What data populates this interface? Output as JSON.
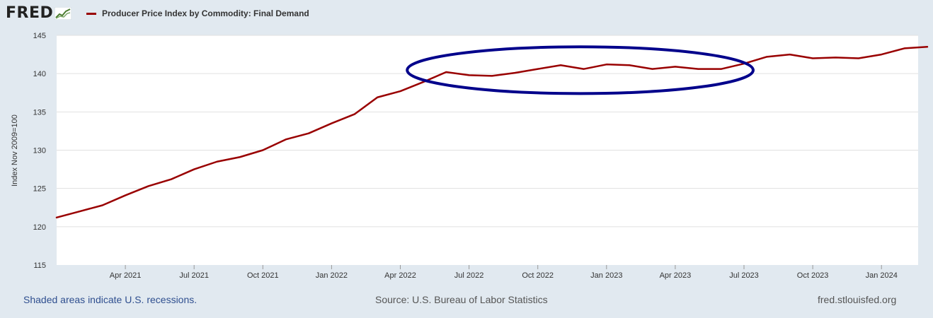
{
  "header": {
    "logo_text": "FRED",
    "series_label": "Producer Price Index by Commodity: Final Demand",
    "series_color": "#990000"
  },
  "chart_data": {
    "type": "line",
    "ylabel": "Index Nov 2009=100",
    "ylim": [
      115,
      145
    ],
    "yticks": [
      115,
      120,
      125,
      130,
      135,
      140,
      145
    ],
    "x_month_index_range": [
      0,
      37
    ],
    "xticks": [
      {
        "label": "Apr 2021",
        "m": 3
      },
      {
        "label": "Jul 2021",
        "m": 6
      },
      {
        "label": "Oct 2021",
        "m": 9
      },
      {
        "label": "Jan 2022",
        "m": 12
      },
      {
        "label": "Apr 2022",
        "m": 15
      },
      {
        "label": "Jul 2022",
        "m": 18
      },
      {
        "label": "Oct 2022",
        "m": 21
      },
      {
        "label": "Jan 2023",
        "m": 24
      },
      {
        "label": "Apr 2023",
        "m": 27
      },
      {
        "label": "Jul 2023",
        "m": 30
      },
      {
        "label": "Oct 2023",
        "m": 33
      },
      {
        "label": "Jan 2024",
        "m": 36
      }
    ],
    "series": [
      {
        "name": "Producer Price Index by Commodity: Final Demand",
        "color": "#990000",
        "start": "Jan 2021",
        "values": [
          121.2,
          122.0,
          122.8,
          124.1,
          125.3,
          126.2,
          127.5,
          128.5,
          129.1,
          130.0,
          131.4,
          132.2,
          133.5,
          134.7,
          136.9,
          137.7,
          138.9,
          140.2,
          139.8,
          139.7,
          140.1,
          140.6,
          141.1,
          140.6,
          141.2,
          141.1,
          140.6,
          140.9,
          140.6,
          140.6,
          141.3,
          142.2,
          142.5,
          142.0,
          142.1,
          142.0,
          142.5,
          143.3,
          143.5
        ]
      }
    ],
    "annotation": {
      "type": "ellipse",
      "color": "#00008b",
      "m_range": [
        15.3,
        30.4
      ],
      "y_range": [
        137.4,
        143.5
      ]
    }
  },
  "footer": {
    "recession_note": "Shaded areas indicate U.S. recessions.",
    "source": "Source: U.S. Bureau of Labor Statistics",
    "site": "fred.stlouisfed.org"
  }
}
